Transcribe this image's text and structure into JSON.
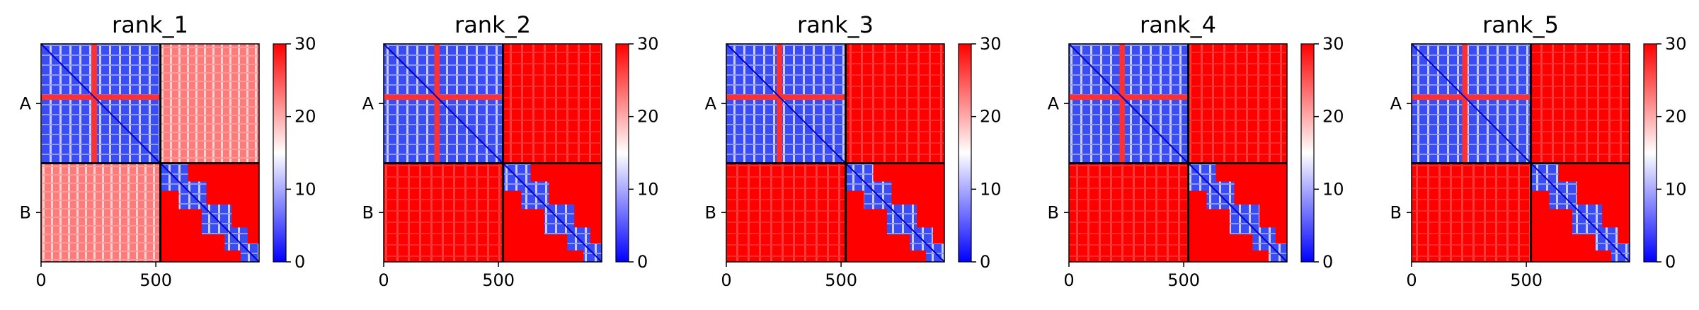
{
  "chart_data": [
    {
      "type": "heatmap",
      "title": "rank_1",
      "x_ticks": [
        "0",
        "500"
      ],
      "y_ticks": [
        "A",
        "B"
      ],
      "x_range": [
        0,
        950
      ],
      "chain_boundary": 520,
      "colorbar": {
        "ticks": [
          "0",
          "10",
          "20",
          "30"
        ],
        "range": [
          0,
          30
        ],
        "colors": [
          "#0000ff",
          "#ffffff",
          "#ff0000"
        ]
      }
    },
    {
      "type": "heatmap",
      "title": "rank_2",
      "x_ticks": [
        "0",
        "500"
      ],
      "y_ticks": [
        "A",
        "B"
      ],
      "x_range": [
        0,
        950
      ],
      "chain_boundary": 520,
      "colorbar": {
        "ticks": [
          "0",
          "10",
          "20",
          "30"
        ],
        "range": [
          0,
          30
        ],
        "colors": [
          "#0000ff",
          "#ffffff",
          "#ff0000"
        ]
      }
    },
    {
      "type": "heatmap",
      "title": "rank_3",
      "x_ticks": [
        "0",
        "500"
      ],
      "y_ticks": [
        "A",
        "B"
      ],
      "x_range": [
        0,
        950
      ],
      "chain_boundary": 520,
      "colorbar": {
        "ticks": [
          "0",
          "10",
          "20",
          "30"
        ],
        "range": [
          0,
          30
        ],
        "colors": [
          "#0000ff",
          "#ffffff",
          "#ff0000"
        ]
      }
    },
    {
      "type": "heatmap",
      "title": "rank_4",
      "x_ticks": [
        "0",
        "500"
      ],
      "y_ticks": [
        "A",
        "B"
      ],
      "x_range": [
        0,
        950
      ],
      "chain_boundary": 520,
      "colorbar": {
        "ticks": [
          "0",
          "10",
          "20",
          "30"
        ],
        "range": [
          0,
          30
        ],
        "colors": [
          "#0000ff",
          "#ffffff",
          "#ff0000"
        ]
      }
    },
    {
      "type": "heatmap",
      "title": "rank_5",
      "x_ticks": [
        "0",
        "500"
      ],
      "y_ticks": [
        "A",
        "B"
      ],
      "x_range": [
        0,
        950
      ],
      "chain_boundary": 520,
      "colorbar": {
        "ticks": [
          "0",
          "10",
          "20",
          "30"
        ],
        "range": [
          0,
          30
        ],
        "colors": [
          "#0000ff",
          "#ffffff",
          "#ff0000"
        ]
      }
    }
  ]
}
